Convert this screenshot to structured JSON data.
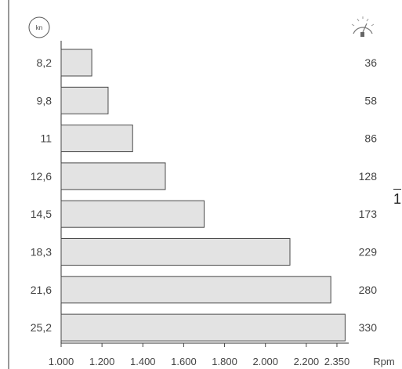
{
  "chart_data": {
    "type": "bar",
    "orientation": "horizontal",
    "categories": [
      "8,2",
      "9,8",
      "11",
      "12,6",
      "14,5",
      "18,3",
      "21,6",
      "25,2"
    ],
    "values": [
      1150,
      1230,
      1350,
      1510,
      1700,
      2120,
      2320,
      2390
    ],
    "right_values": [
      "36",
      "58",
      "86",
      "128",
      "173",
      "229",
      "280",
      "330"
    ],
    "x_ticks": [
      "1.000",
      "1.200",
      "1.400",
      "1.600",
      "1.800",
      "2.000",
      "2.200",
      "2.350"
    ],
    "x_tick_values": [
      1000,
      1200,
      1400,
      1600,
      1800,
      2000,
      2200,
      2350
    ],
    "xlabel": "Rpm",
    "left_unit_badge": "kn",
    "right_icon": "fuel-gauge-icon",
    "xlim": [
      1000,
      2400
    ],
    "bar_fill": "#e3e3e3",
    "bar_stroke": "#4a4a4a"
  },
  "side_mark": "1"
}
